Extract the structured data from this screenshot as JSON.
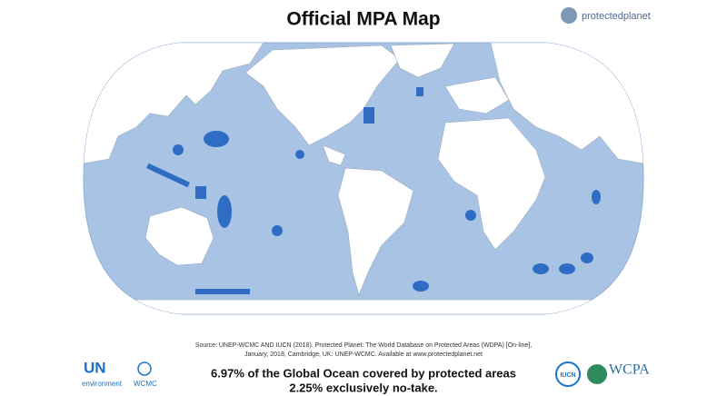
{
  "header": {
    "title": "Official MPA Map",
    "brand": "protectedplanet"
  },
  "source": [
    "Source: UNEP-WCMC AND IUCN (2018). Protected Planet: The World Database on Protected Areas (WDPA) [On-line],",
    "January, 2018, Cambridge, UK: UNEP-WCMC. Available at www.protectedplanet.net"
  ],
  "summary": [
    "6.97% of the Global Ocean covered by protected areas",
    "2.25% exclusively no-take."
  ],
  "logos": {
    "un": "UN",
    "environment": "environment",
    "wcmc": "WCMC",
    "iucn": "IUCN",
    "wcpa": "WCPA"
  }
}
